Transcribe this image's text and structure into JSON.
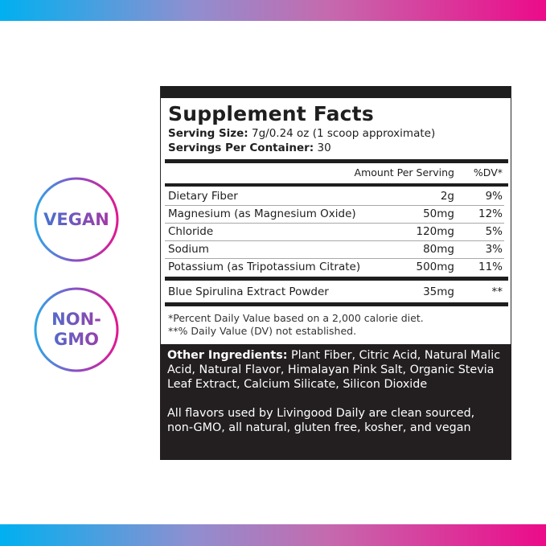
{
  "colors": {
    "gradient_start": "#00b0f0",
    "gradient_end": "#ec0b8a",
    "label_dark": "#231f20"
  },
  "badges": [
    {
      "lines": [
        "VEGAN"
      ]
    },
    {
      "lines": [
        "NON-",
        "GMO"
      ]
    }
  ],
  "label": {
    "title": "Supplement Facts",
    "serving_size_label": "Serving Size:",
    "serving_size_value": " 7g/0.24 oz (1 scoop approximate)",
    "servings_label": "Servings Per Container:",
    "servings_value": " 30",
    "header": {
      "amount": "Amount Per Serving",
      "dv": "%DV*"
    },
    "rows": [
      {
        "name": "Dietary Fiber",
        "amount": "2g",
        "dv": "9%"
      },
      {
        "name": "Magnesium (as Magnesium Oxide)",
        "amount": "50mg",
        "dv": "12%"
      },
      {
        "name": "Chloride",
        "amount": "120mg",
        "dv": "5%"
      },
      {
        "name": "Sodium",
        "amount": "80mg",
        "dv": "3%"
      },
      {
        "name": "Potassium (as Tripotassium Citrate)",
        "amount": "500mg",
        "dv": "11%"
      }
    ],
    "blend": {
      "name": "Blue Spirulina Extract Powder",
      "amount": "35mg",
      "dv": "**"
    },
    "footnotes": [
      "*Percent Daily Value based on a 2,000 calorie diet.",
      "**% Daily Value (DV) not established."
    ],
    "other_label": "Other Ingredients:",
    "other_text": " Plant Fiber, Citric Acid, Natural Malic Acid, Natural Flavor, Himalayan Pink Salt, Organic Stevia Leaf Extract, Calcium Silicate, Silicon Dioxide",
    "statement": "All flavors used by Livingood Daily are clean sourced, non-GMO, all natural, gluten free, kosher, and vegan"
  }
}
